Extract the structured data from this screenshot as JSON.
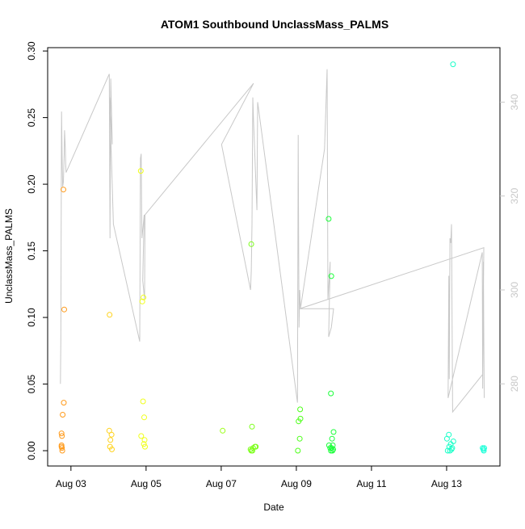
{
  "chart_data": {
    "type": "scatter",
    "title": "ATOM1 Southbound UnclassMass_PALMS",
    "xlabel": "Date",
    "ylabel": "UnclassMass_PALMS",
    "x_ticks": [
      "Aug 03",
      "Aug 05",
      "Aug 07",
      "Aug 09",
      "Aug 11",
      "Aug 13"
    ],
    "y_ticks": [
      "0.00",
      "0.05",
      "0.10",
      "0.15",
      "0.20",
      "0.25",
      "0.30"
    ],
    "y2_ticks": [
      "280",
      "300",
      "320",
      "340"
    ],
    "x_unit": "days since Aug 01 00:00",
    "xlim": [
      1.38,
      13.42
    ],
    "ylim": [
      -0.0115,
      0.3025
    ],
    "y2lim": [
      262.5,
      351.6
    ],
    "points": [
      {
        "x": 1.75,
        "y": 0.003,
        "c": "#ff9a1a"
      },
      {
        "x": 1.76,
        "y": 0.002,
        "c": "#ff9a1a"
      },
      {
        "x": 1.77,
        "y": 0.0,
        "c": "#ff9a1a"
      },
      {
        "x": 1.75,
        "y": 0.004,
        "c": "#ff9a1a"
      },
      {
        "x": 1.76,
        "y": 0.011,
        "c": "#ff9a1a"
      },
      {
        "x": 1.75,
        "y": 0.013,
        "c": "#ff9a1a"
      },
      {
        "x": 1.78,
        "y": 0.027,
        "c": "#ff9a1a"
      },
      {
        "x": 1.81,
        "y": 0.036,
        "c": "#ff9a1a"
      },
      {
        "x": 1.82,
        "y": 0.106,
        "c": "#ff9a1a"
      },
      {
        "x": 1.8,
        "y": 0.196,
        "c": "#ff9a1a"
      },
      {
        "x": 3.03,
        "y": 0.102,
        "c": "#ffd21a"
      },
      {
        "x": 3.02,
        "y": 0.015,
        "c": "#ffd21a"
      },
      {
        "x": 3.08,
        "y": 0.012,
        "c": "#ffd21a"
      },
      {
        "x": 3.05,
        "y": 0.008,
        "c": "#ffd21a"
      },
      {
        "x": 3.04,
        "y": 0.003,
        "c": "#ffd21a"
      },
      {
        "x": 3.09,
        "y": 0.001,
        "c": "#ffd21a"
      },
      {
        "x": 3.86,
        "y": 0.21,
        "c": "#f0ff1a"
      },
      {
        "x": 3.93,
        "y": 0.115,
        "c": "#f0ff1a"
      },
      {
        "x": 3.9,
        "y": 0.112,
        "c": "#f0ff1a"
      },
      {
        "x": 3.92,
        "y": 0.037,
        "c": "#f0ff1a"
      },
      {
        "x": 3.95,
        "y": 0.025,
        "c": "#f0ff1a"
      },
      {
        "x": 3.87,
        "y": 0.011,
        "c": "#f0ff1a"
      },
      {
        "x": 3.96,
        "y": 0.008,
        "c": "#f0ff1a"
      },
      {
        "x": 3.94,
        "y": 0.005,
        "c": "#f0ff1a"
      },
      {
        "x": 3.97,
        "y": 0.003,
        "c": "#f0ff1a"
      },
      {
        "x": 6.04,
        "y": 0.015,
        "c": "#9cff1a"
      },
      {
        "x": 6.8,
        "y": 0.155,
        "c": "#7cff1a"
      },
      {
        "x": 6.82,
        "y": 0.018,
        "c": "#7cff1a"
      },
      {
        "x": 6.78,
        "y": 0.001,
        "c": "#7cff1a"
      },
      {
        "x": 6.8,
        "y": 0.0,
        "c": "#7cff1a"
      },
      {
        "x": 6.83,
        "y": 0.0,
        "c": "#7cff1a"
      },
      {
        "x": 6.85,
        "y": 0.002,
        "c": "#7cff1a"
      },
      {
        "x": 6.9,
        "y": 0.003,
        "c": "#7cff1a"
      },
      {
        "x": 6.92,
        "y": 0.003,
        "c": "#7cff1a"
      },
      {
        "x": 8.06,
        "y": 0.022,
        "c": "#4dff1a"
      },
      {
        "x": 8.1,
        "y": 0.031,
        "c": "#4dff1a"
      },
      {
        "x": 8.11,
        "y": 0.024,
        "c": "#4dff1a"
      },
      {
        "x": 8.09,
        "y": 0.009,
        "c": "#4dff1a"
      },
      {
        "x": 8.04,
        "y": 0.0,
        "c": "#4dff1a"
      },
      {
        "x": 8.86,
        "y": 0.174,
        "c": "#1aff3a"
      },
      {
        "x": 8.93,
        "y": 0.131,
        "c": "#1aff3a"
      },
      {
        "x": 8.92,
        "y": 0.043,
        "c": "#1aff3a"
      },
      {
        "x": 8.99,
        "y": 0.014,
        "c": "#1aff3a"
      },
      {
        "x": 8.95,
        "y": 0.009,
        "c": "#1aff3a"
      },
      {
        "x": 8.87,
        "y": 0.004,
        "c": "#1aff3a"
      },
      {
        "x": 8.97,
        "y": 0.004,
        "c": "#1aff3a"
      },
      {
        "x": 8.9,
        "y": 0.002,
        "c": "#1aff3a"
      },
      {
        "x": 8.94,
        "y": 0.002,
        "c": "#1aff3a"
      },
      {
        "x": 8.98,
        "y": 0.001,
        "c": "#1aff3a"
      },
      {
        "x": 8.92,
        "y": 0.0,
        "c": "#1aff3a"
      },
      {
        "x": 8.96,
        "y": 0.0,
        "c": "#1aff3a"
      },
      {
        "x": 12.17,
        "y": 0.29,
        "c": "#1affc8"
      },
      {
        "x": 12.06,
        "y": 0.012,
        "c": "#1affc8"
      },
      {
        "x": 12.01,
        "y": 0.009,
        "c": "#1affc8"
      },
      {
        "x": 12.18,
        "y": 0.007,
        "c": "#1affc8"
      },
      {
        "x": 12.11,
        "y": 0.005,
        "c": "#1affc8"
      },
      {
        "x": 12.07,
        "y": 0.003,
        "c": "#1affc8"
      },
      {
        "x": 12.15,
        "y": 0.002,
        "c": "#1affc8"
      },
      {
        "x": 12.03,
        "y": 0.0,
        "c": "#1affc8"
      },
      {
        "x": 12.09,
        "y": 0.0,
        "c": "#1affc8"
      },
      {
        "x": 12.13,
        "y": 0.001,
        "c": "#1affc8"
      },
      {
        "x": 12.96,
        "y": 0.002,
        "c": "#1affd8"
      },
      {
        "x": 13.0,
        "y": 0.002,
        "c": "#1affd8"
      },
      {
        "x": 12.98,
        "y": 0.001,
        "c": "#1affd8"
      },
      {
        "x": 12.99,
        "y": 0.0,
        "c": "#1affd8"
      }
    ],
    "altitude_series": {
      "color": "#c8c8c8",
      "x": [
        1.72,
        1.73,
        1.75,
        1.77,
        1.78,
        1.8,
        1.82,
        1.83,
        1.85,
        1.86,
        1.87,
        3.02,
        3.04,
        3.06,
        3.1,
        3.03,
        3.13,
        3.83,
        3.85,
        3.87,
        3.89,
        3.95,
        3.91,
        3.96,
        3.97,
        6.86,
        6.01,
        6.78,
        6.8,
        6.82,
        6.84,
        6.86,
        6.95,
        6.97,
        8.03,
        8.05,
        8.07,
        8.09,
        8.11,
        8.75,
        8.82,
        8.84,
        8.9,
        8.86,
        8.93,
        8.99,
        8.09,
        12.99,
        12.96,
        12.95,
        12.04,
        12.06,
        12.07,
        12.09,
        12.11,
        12.13,
        12.16,
        12.96,
        12.98,
        12.99,
        13.0
      ],
      "y": [
        280,
        289,
        338,
        326,
        322,
        323,
        329,
        334,
        330,
        327,
        325,
        346,
        311,
        345,
        331,
        341,
        314,
        289,
        328,
        329,
        311,
        316,
        302,
        298,
        316,
        344,
        331,
        300,
        304,
        314,
        341,
        336,
        317,
        340,
        276,
        333,
        292,
        300,
        296,
        330,
        347,
        298,
        306,
        290,
        292,
        296,
        296,
        309,
        279,
        308,
        277,
        303,
        281,
        311,
        310,
        314,
        274,
        282,
        306,
        290,
        277
      ]
    }
  }
}
